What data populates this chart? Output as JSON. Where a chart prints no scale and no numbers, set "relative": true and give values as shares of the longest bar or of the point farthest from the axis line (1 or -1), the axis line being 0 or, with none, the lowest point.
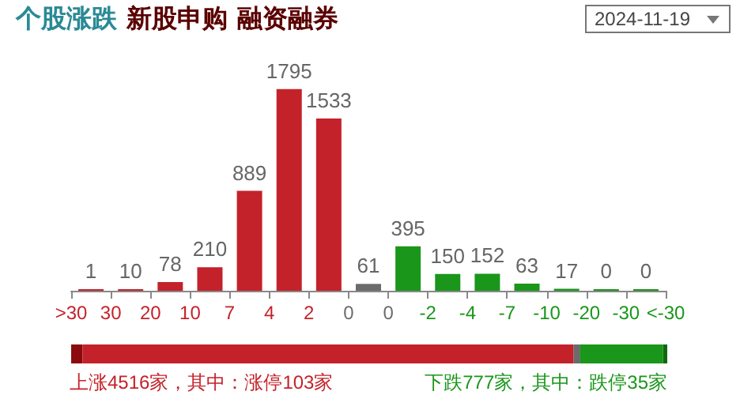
{
  "chart_data": [
    {
      "type": "bar",
      "title": "个股涨跌",
      "annotations": [
        "新股申购",
        "融资融券",
        "2024-11-19"
      ],
      "categories": [
        ">30",
        "30",
        "20",
        "10",
        "7",
        "4",
        "2",
        "0",
        "0",
        "-2",
        "-4",
        "-7",
        "-10",
        "-20",
        "-30",
        "<-30"
      ],
      "values": [
        1,
        10,
        78,
        210,
        889,
        1795,
        1533,
        61,
        395,
        150,
        152,
        63,
        17,
        0,
        0,
        null
      ],
      "colors": [
        "#c4222a",
        "#c4222a",
        "#c4222a",
        "#c4222a",
        "#c4222a",
        "#c4222a",
        "#c4222a",
        "#6b6b6b",
        "#1a961a",
        "#1a961a",
        "#1a961a",
        "#1a961a",
        "#1a961a",
        "#1a961a",
        "#1a961a",
        "#1a961a"
      ],
      "data_labels": true,
      "grid": false,
      "tick_labels": "x"
    },
    {
      "type": "bar",
      "orientation": "horizontal",
      "stacked": true,
      "relative": true,
      "categories": [
        null
      ],
      "series": [
        {
          "color": "#8b0a0e",
          "values": [
            0.019
          ]
        },
        {
          "color": "#c4222a",
          "values": [
            0.824
          ]
        },
        {
          "color": "#6b6b6b",
          "values": [
            0.011
          ]
        },
        {
          "color": "#1a961a",
          "values": [
            0.139
          ]
        },
        {
          "color": "#0e6a0e",
          "values": [
            0.007
          ]
        }
      ],
      "annotations": [
        "上涨4516家，其中：涨停103家",
        "下跌777家，其中：跌停35家"
      ],
      "tick_labels": false
    }
  ]
}
